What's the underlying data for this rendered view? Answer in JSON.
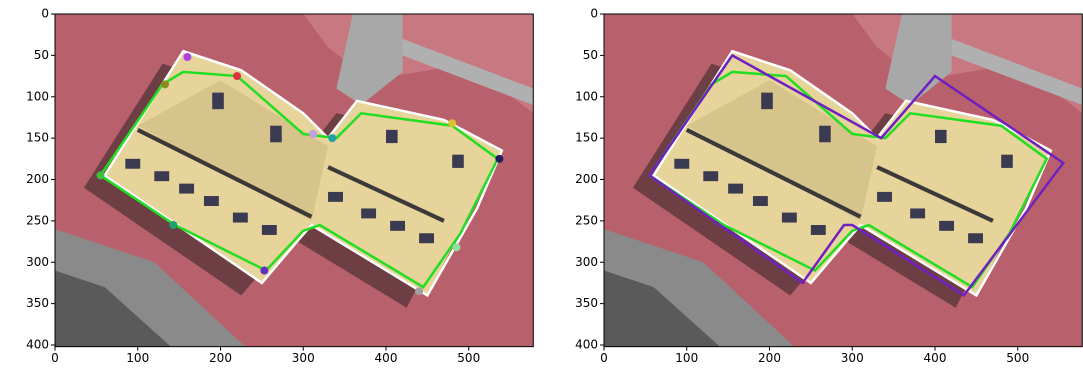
{
  "chart_data": [
    {
      "type": "polygon",
      "xlim": [
        0,
        578
      ],
      "ylim": [
        402,
        0
      ],
      "xticks": [
        0,
        100,
        200,
        300,
        400,
        500
      ],
      "yticks": [
        0,
        50,
        100,
        150,
        200,
        250,
        300,
        350,
        400
      ],
      "series": [
        {
          "color": "#ffffff",
          "x": [
            155,
            225,
            300,
            330,
            365,
            470,
            540,
            510,
            450,
            310,
            295,
            250,
            60
          ],
          "y": [
            45,
            68,
            120,
            150,
            105,
            128,
            165,
            235,
            340,
            255,
            272,
            325,
            195
          ]
        },
        {
          "color": "#22dd22",
          "x": [
            130,
            155,
            220,
            300,
            340,
            370,
            480,
            535,
            490,
            445,
            320,
            300,
            255,
            145,
            55
          ],
          "y": [
            85,
            70,
            75,
            145,
            150,
            120,
            135,
            175,
            265,
            330,
            255,
            262,
            310,
            255,
            195
          ]
        }
      ],
      "points": {
        "x": [
          160,
          220,
          133,
          312,
          335,
          480,
          537,
          485,
          440,
          253,
          143,
          55
        ],
        "y": [
          52,
          75,
          85,
          145,
          150,
          132,
          175,
          282,
          335,
          310,
          255,
          195
        ],
        "colors": [
          "#b040e0",
          "#e03040",
          "#8a8a20",
          "#c0a0e0",
          "#20a0a0",
          "#d8c030",
          "#202060",
          "#90e0a0",
          "#a0a0a0",
          "#6030c0",
          "#20a070",
          "#40c040"
        ]
      }
    },
    {
      "type": "polygon",
      "xlim": [
        0,
        578
      ],
      "ylim": [
        402,
        0
      ],
      "xticks": [
        0,
        100,
        200,
        300,
        400,
        500
      ],
      "yticks": [
        0,
        50,
        100,
        150,
        200,
        250,
        300,
        350,
        400
      ],
      "series": [
        {
          "color": "#ffffff",
          "x": [
            155,
            225,
            300,
            330,
            365,
            470,
            540,
            510,
            450,
            310,
            295,
            250,
            60
          ],
          "y": [
            45,
            68,
            120,
            150,
            105,
            128,
            165,
            235,
            340,
            255,
            272,
            325,
            195
          ]
        },
        {
          "color": "#22dd22",
          "x": [
            130,
            155,
            220,
            300,
            340,
            370,
            480,
            535,
            490,
            445,
            320,
            300,
            255,
            145,
            55
          ],
          "y": [
            85,
            70,
            75,
            145,
            150,
            120,
            135,
            175,
            265,
            330,
            255,
            262,
            310,
            255,
            195
          ]
        },
        {
          "color": "#7020c0",
          "x": [
            55,
            155,
            335,
            400,
            555,
            435,
            300,
            290,
            240,
            55
          ],
          "y": [
            195,
            50,
            150,
            75,
            180,
            340,
            255,
            255,
            325,
            195
          ]
        }
      ]
    }
  ]
}
